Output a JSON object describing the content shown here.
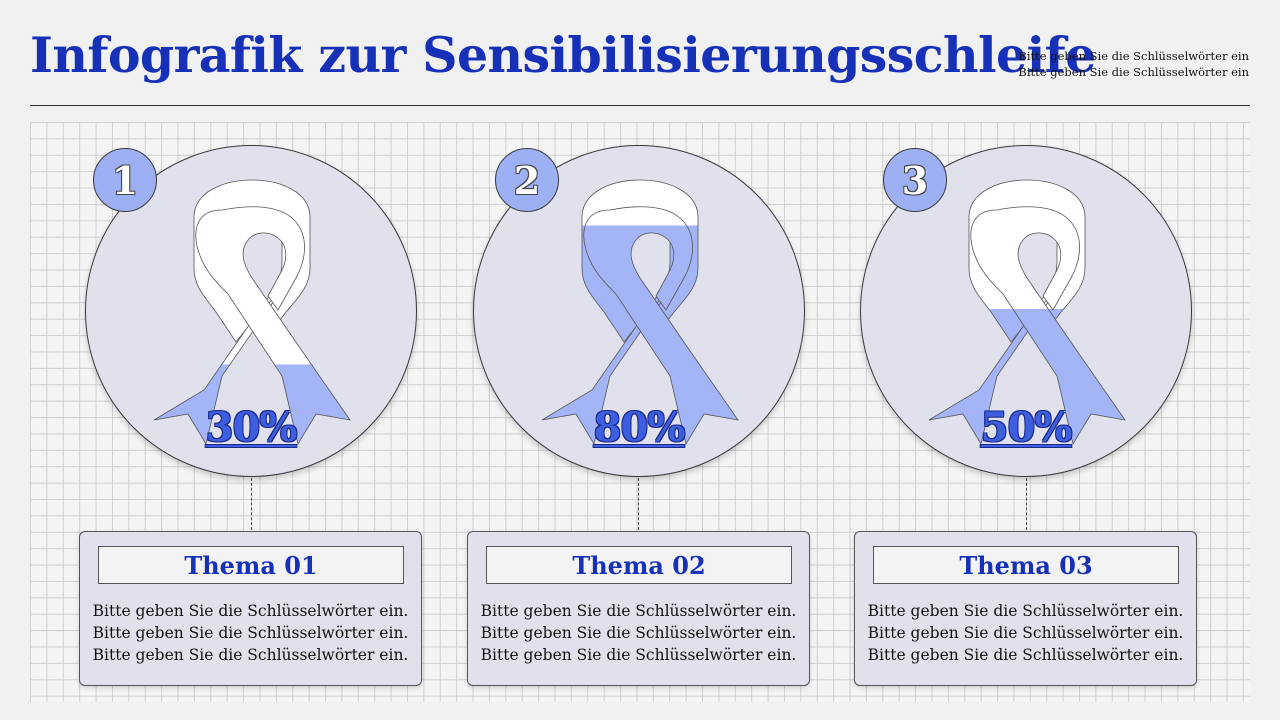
{
  "header": {
    "title": "Infografik zur Sensibilisierungsschleife",
    "subtitle_lines": [
      "Bitte geben Sie die Schlüsselwörter ein",
      "Bitte geben Sie die Schlüsselwörter ein"
    ]
  },
  "colors": {
    "title": "#1730b8",
    "ribbon_fill": "#a4b5f7",
    "ribbon_empty": "#ffffff",
    "circle_bg": "#e0e1ed",
    "badge_bg": "#9eb0f4"
  },
  "items": [
    {
      "number": "1",
      "percent_label": "30%",
      "fill_fraction": 0.3,
      "topic": "Thema 01",
      "body_lines": [
        "Bitte geben Sie die Schlüsselwörter ein.",
        "Bitte geben Sie die Schlüsselwörter ein.",
        "Bitte geben Sie die Schlüsselwörter ein."
      ]
    },
    {
      "number": "2",
      "percent_label": "80%",
      "fill_fraction": 0.8,
      "topic": "Thema 02",
      "body_lines": [
        "Bitte geben Sie die Schlüsselwörter ein.",
        "Bitte geben Sie die Schlüsselwörter ein.",
        "Bitte geben Sie die Schlüsselwörter ein."
      ]
    },
    {
      "number": "3",
      "percent_label": "50%",
      "fill_fraction": 0.5,
      "topic": "Thema 03",
      "body_lines": [
        "Bitte geben Sie die Schlüsselwörter ein.",
        "Bitte geben Sie die Schlüsselwörter ein.",
        "Bitte geben Sie die Schlüsselwörter ein."
      ]
    }
  ]
}
